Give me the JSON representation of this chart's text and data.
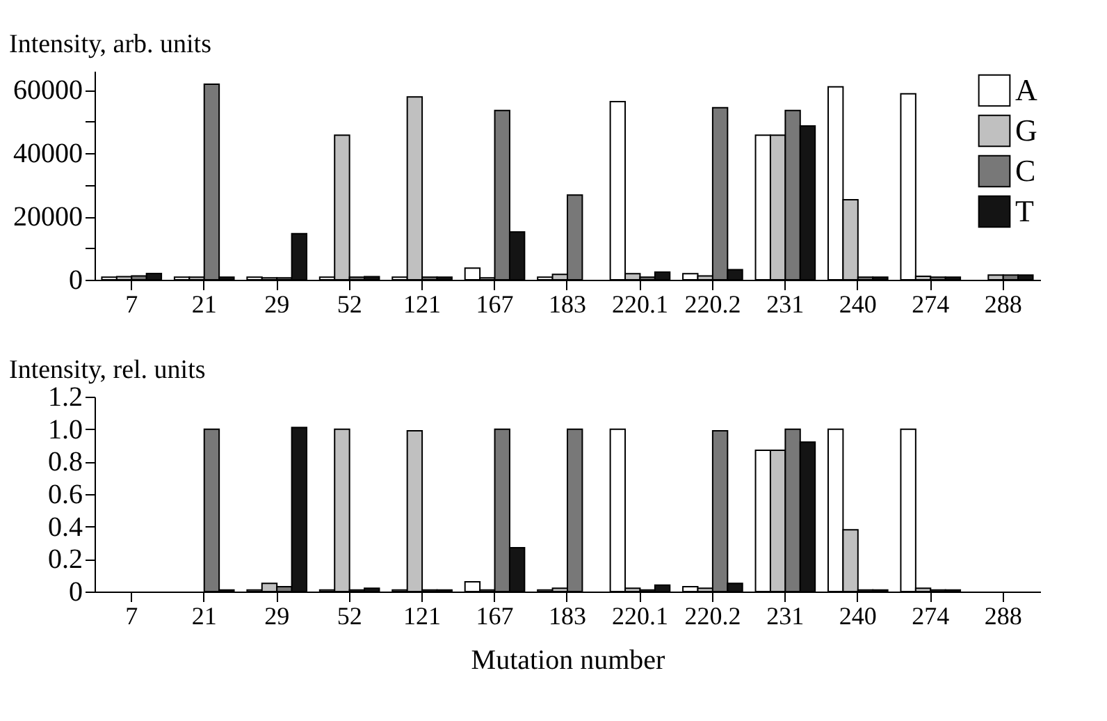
{
  "chart_data": [
    {
      "type": "bar",
      "ylabel": "Intensity, arb. units",
      "categories": [
        "7",
        "21",
        "29",
        "52",
        "121",
        "167",
        "183",
        "220.1",
        "220.2",
        "231",
        "240",
        "274",
        "288"
      ],
      "series": [
        {
          "name": "A",
          "color": "#ffffff",
          "values": [
            800,
            800,
            800,
            800,
            800,
            3700,
            800,
            56300,
            1900,
            45700,
            61000,
            58800,
            null
          ]
        },
        {
          "name": "G",
          "color": "#c0c0c0",
          "values": [
            1000,
            800,
            600,
            45700,
            57800,
            600,
            1700,
            1900,
            1200,
            45700,
            25300,
            1100,
            1500
          ]
        },
        {
          "name": "C",
          "color": "#787878",
          "values": [
            1200,
            61800,
            600,
            800,
            800,
            53500,
            26800,
            800,
            54400,
            53500,
            800,
            800,
            1500
          ]
        },
        {
          "name": "T",
          "color": "#141414",
          "values": [
            2000,
            800,
            14600,
            1000,
            800,
            15100,
            null,
            2400,
            3200,
            48600,
            800,
            800,
            1500
          ]
        }
      ],
      "ylim": [
        0,
        66000
      ],
      "yticks": [
        0,
        {
          "value": 10000,
          "label": null
        },
        20000,
        {
          "value": 30000,
          "label": null
        },
        40000,
        {
          "value": 50000,
          "label": null
        },
        60000
      ],
      "grid": false,
      "legend": "top right"
    },
    {
      "type": "bar",
      "ylabel": "Intensity, rel. units",
      "xlabel": "Mutation number",
      "categories": [
        "7",
        "21",
        "29",
        "52",
        "121",
        "167",
        "183",
        "220.1",
        "220.2",
        "231",
        "240",
        "274",
        "288"
      ],
      "series": [
        {
          "name": "A",
          "color": "#ffffff",
          "values": [
            null,
            null,
            0.01,
            0.01,
            0.01,
            0.06,
            0.01,
            1.0,
            0.03,
            0.87,
            1.0,
            1.0,
            null
          ]
        },
        {
          "name": "G",
          "color": "#c0c0c0",
          "values": [
            null,
            null,
            0.05,
            1.0,
            0.99,
            0.01,
            0.02,
            0.02,
            0.02,
            0.87,
            0.38,
            0.02,
            null
          ]
        },
        {
          "name": "C",
          "color": "#787878",
          "values": [
            null,
            1.0,
            0.03,
            0.01,
            0.01,
            1.0,
            1.0,
            0.01,
            0.99,
            1.0,
            0.01,
            0.01,
            null
          ]
        },
        {
          "name": "T",
          "color": "#141414",
          "values": [
            null,
            0.01,
            1.01,
            0.02,
            0.01,
            0.27,
            null,
            0.04,
            0.05,
            0.92,
            0.01,
            0.01,
            null
          ]
        }
      ],
      "ylim": [
        0,
        1.2
      ],
      "yticks": [
        0,
        {
          "value": 0.2,
          "label": "0.2"
        },
        {
          "value": 0.4,
          "label": "0.4"
        },
        {
          "value": 0.6,
          "label": "0.6"
        },
        {
          "value": 0.8,
          "label": "0.8"
        },
        {
          "value": 1,
          "label": "1.0"
        },
        {
          "value": 1.2,
          "label": "1.2"
        }
      ],
      "grid": false,
      "legend": false
    }
  ]
}
